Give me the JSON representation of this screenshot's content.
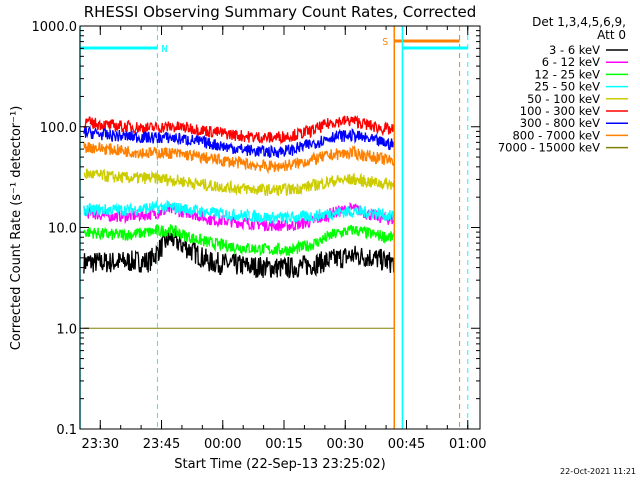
{
  "chart_data": {
    "type": "line",
    "title": "RHESSI Observing Summary Count Rates, Corrected",
    "xlabel": "Start Time (22-Sep-13 23:25:02)",
    "ylabel": "Corrected Count Rate (s⁻¹ detector⁻¹)",
    "y_scale": "log",
    "ylim": [
      0.1,
      1000
    ],
    "y_ticks": [
      "1000.0",
      "100.0",
      "10.0",
      "1.0",
      "0.1"
    ],
    "xlim": [
      "23:25:02",
      "01:03:00"
    ],
    "x_ticks": [
      "23:30",
      "23:45",
      "00:00",
      "00:15",
      "00:30",
      "00:45",
      "01:00"
    ],
    "legend": {
      "placement": "right",
      "header": [
        "Det 1,3,4,5,6,9,",
        "Att 0"
      ]
    },
    "flags": [
      {
        "label": "N",
        "color": "#00ffff",
        "start": "23:25:02",
        "end": "23:44:00",
        "dashed_at": "23:44:00"
      },
      {
        "label": "S",
        "color": "#ff8000",
        "start": "00:42:00",
        "end": "00:58:00",
        "dashed_at": "00:58:00"
      },
      {
        "label": "",
        "color": "#00ffff",
        "start": "00:44:00",
        "end": "01:00:00",
        "dashed_at": "01:00:00"
      }
    ],
    "x": [
      "23:27",
      "23:32",
      "23:37",
      "23:42",
      "23:47",
      "23:52",
      "23:57",
      "00:02",
      "00:07",
      "00:12",
      "00:17",
      "00:22",
      "00:27",
      "00:32",
      "00:37",
      "00:41"
    ],
    "series": [
      {
        "name": "3 - 6 keV",
        "color": "#000000",
        "values": [
          4.5,
          4.5,
          4.6,
          4.6,
          8.0,
          6.0,
          4.5,
          4.3,
          4.1,
          4.0,
          4.0,
          4.3,
          4.8,
          5.3,
          5.0,
          4.5
        ]
      },
      {
        "name": "6 - 12 keV",
        "color": "#ff00ff",
        "values": [
          14,
          13,
          13,
          13.5,
          15,
          14,
          12,
          11.5,
          11,
          10.5,
          10.5,
          11.5,
          14,
          15.5,
          13,
          12
        ]
      },
      {
        "name": "12 - 25 keV",
        "color": "#00ff00",
        "values": [
          9,
          8.5,
          8.5,
          9,
          9.5,
          8,
          7,
          6.5,
          6.2,
          6.0,
          6.0,
          6.8,
          8.5,
          9.5,
          8.5,
          8
        ]
      },
      {
        "name": "25 - 50 keV",
        "color": "#00ffff",
        "values": [
          15,
          15,
          15,
          15.5,
          16,
          15,
          14,
          13.5,
          13,
          12.5,
          12.5,
          13,
          14,
          14.5,
          14,
          13
        ]
      },
      {
        "name": "50 - 100 keV",
        "color": "#cccc00",
        "values": [
          34,
          32,
          31,
          31,
          30,
          28,
          26,
          25,
          24,
          23.5,
          24,
          26,
          29,
          30,
          28,
          27
        ]
      },
      {
        "name": "100 - 300 keV",
        "color": "#ff0000",
        "values": [
          110,
          103,
          100,
          97,
          100,
          97,
          90,
          84,
          79,
          78,
          82,
          92,
          112,
          115,
          100,
          93
        ]
      },
      {
        "name": "300 - 800 keV",
        "color": "#0000ff",
        "values": [
          88,
          82,
          80,
          78,
          78,
          74,
          68,
          62,
          58,
          56,
          59,
          68,
          80,
          82,
          73,
          67
        ]
      },
      {
        "name": "800 - 7000 keV",
        "color": "#ff8000",
        "values": [
          63,
          60,
          57,
          55,
          55,
          52,
          48,
          45,
          42,
          40,
          42,
          47,
          53,
          55,
          50,
          46
        ]
      },
      {
        "name": "7000 - 15000 keV",
        "color": "#808000",
        "values": [
          1.0,
          1.0,
          1.0,
          1.0,
          1.0,
          1.0,
          1.0,
          1.0,
          1.0,
          1.0,
          1.0,
          1.0,
          1.0,
          1.0,
          1.0,
          1.0
        ]
      }
    ],
    "footer": "22-Oct-2021 11:21"
  }
}
